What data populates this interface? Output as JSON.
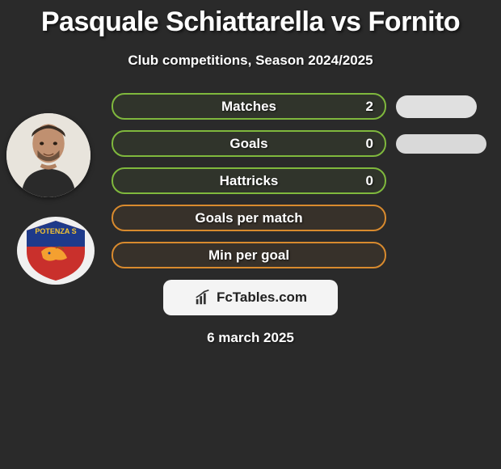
{
  "title": "Pasquale Schiattarella vs Fornito",
  "subtitle": "Club competitions, Season 2024/2025",
  "date": "6 march 2025",
  "site_logo_text": "FcTables.com",
  "colors": {
    "background": "#2a2a2a",
    "green": "#7fb83d",
    "orange": "#d88a2e",
    "pill_grey": "#e0e0e0",
    "text": "#ffffff"
  },
  "stats": [
    {
      "label": "Matches",
      "value": "2",
      "color": "green",
      "has_side_pill": true
    },
    {
      "label": "Goals",
      "value": "0",
      "color": "green",
      "has_side_pill": true
    },
    {
      "label": "Hattricks",
      "value": "0",
      "color": "green",
      "has_side_pill": false
    },
    {
      "label": "Goals per match",
      "value": "",
      "color": "orange",
      "has_side_pill": false
    },
    {
      "label": "Min per goal",
      "value": "",
      "color": "orange",
      "has_side_pill": false
    }
  ],
  "player_avatar": {
    "name": "player-portrait"
  },
  "club_badge": {
    "name": "potenza-badge"
  }
}
